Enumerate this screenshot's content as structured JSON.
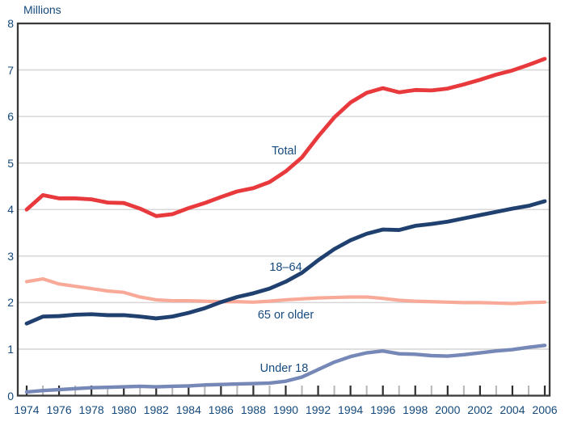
{
  "chart_data": {
    "type": "line",
    "title": "",
    "unit_label": "Millions",
    "xlabel": "",
    "ylabel": "Millions",
    "xlim": [
      1974,
      2006
    ],
    "ylim": [
      0,
      8
    ],
    "grid": "horizontal",
    "y_ticks": [
      0,
      1,
      2,
      3,
      4,
      5,
      6,
      7,
      8
    ],
    "x_tick_labels": [
      "1974",
      "1976",
      "1978",
      "1980",
      "1982",
      "1984",
      "1986",
      "1988",
      "1990",
      "1992",
      "1994",
      "1996",
      "1998",
      "2000",
      "2002",
      "2004",
      "2006"
    ],
    "x": [
      1974,
      1975,
      1976,
      1977,
      1978,
      1979,
      1980,
      1981,
      1982,
      1983,
      1984,
      1985,
      1986,
      1987,
      1988,
      1989,
      1990,
      1991,
      1992,
      1993,
      1994,
      1995,
      1996,
      1997,
      1998,
      1999,
      2000,
      2001,
      2002,
      2003,
      2004,
      2005,
      2006
    ],
    "series": [
      {
        "name": "Total",
        "color": "#e83a3d",
        "values": [
          4.0,
          4.31,
          4.24,
          4.24,
          4.22,
          4.15,
          4.14,
          4.02,
          3.86,
          3.9,
          4.03,
          4.14,
          4.27,
          4.39,
          4.46,
          4.59,
          4.82,
          5.12,
          5.57,
          5.98,
          6.3,
          6.51,
          6.61,
          6.52,
          6.57,
          6.56,
          6.6,
          6.69,
          6.79,
          6.9,
          6.99,
          7.11,
          7.24
        ]
      },
      {
        "name": "18–64",
        "color": "#20406f",
        "values": [
          1.55,
          1.7,
          1.71,
          1.74,
          1.75,
          1.73,
          1.73,
          1.7,
          1.66,
          1.7,
          1.78,
          1.88,
          2.01,
          2.12,
          2.2,
          2.3,
          2.45,
          2.64,
          2.91,
          3.15,
          3.34,
          3.48,
          3.57,
          3.56,
          3.65,
          3.69,
          3.74,
          3.81,
          3.88,
          3.95,
          4.02,
          4.08,
          4.18
        ]
      },
      {
        "name": "65 or older",
        "color": "#f9a998",
        "values": [
          2.45,
          2.51,
          2.4,
          2.35,
          2.3,
          2.25,
          2.22,
          2.12,
          2.06,
          2.04,
          2.04,
          2.03,
          2.02,
          2.02,
          2.01,
          2.03,
          2.06,
          2.08,
          2.1,
          2.11,
          2.12,
          2.12,
          2.09,
          2.05,
          2.03,
          2.02,
          2.01,
          2.0,
          2.0,
          1.99,
          1.98,
          2.0,
          2.01
        ]
      },
      {
        "name": "Under 18",
        "color": "#7588b7",
        "values": [
          0.08,
          0.11,
          0.13,
          0.15,
          0.17,
          0.18,
          0.19,
          0.2,
          0.19,
          0.2,
          0.21,
          0.23,
          0.24,
          0.25,
          0.26,
          0.27,
          0.31,
          0.4,
          0.56,
          0.72,
          0.84,
          0.92,
          0.96,
          0.9,
          0.89,
          0.86,
          0.85,
          0.88,
          0.92,
          0.96,
          0.99,
          1.04,
          1.08
        ]
      }
    ],
    "annotations": [
      {
        "text": "Total",
        "year": 1989.9,
        "value": 5.26
      },
      {
        "text": "18–64",
        "year": 1990.0,
        "value": 2.75
      },
      {
        "text": "65 or older",
        "year": 1990.0,
        "value": 1.73
      },
      {
        "text": "Under 18",
        "year": 1989.9,
        "value": 0.58
      }
    ],
    "legend": "inline-labels"
  },
  "style_colors": {
    "axis_text": "#15497b",
    "plot_border": "#3a3a3a",
    "gridline": "#d7d7d7",
    "major_tick": "#2e2e2e",
    "minor_tick": "#b5b5b5"
  }
}
